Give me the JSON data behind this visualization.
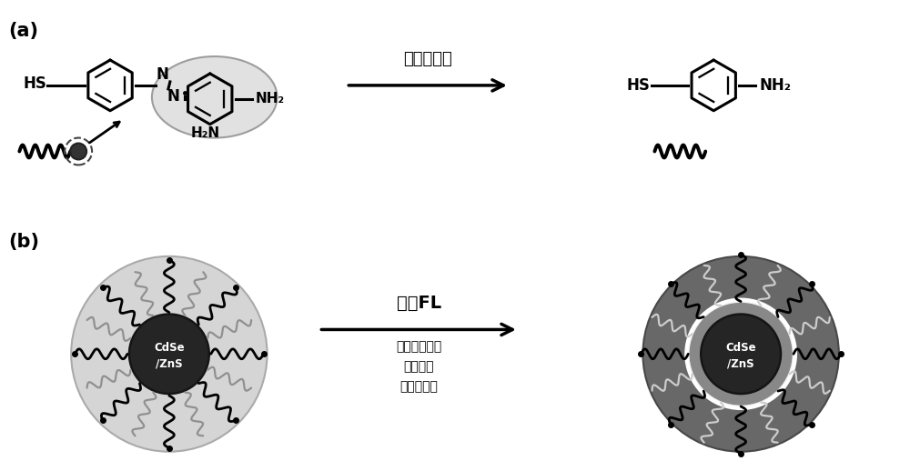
{
  "label_a": "(a)",
  "label_b": "(b)",
  "arrow_text_a": "移除偶氮苯",
  "arrow_text_b": "开启FL",
  "arrow_text_b2": "连二亚硫酸盐\n次氯酸盐\n偶氮还原酶",
  "bg_color": "#ffffff",
  "dark_color": "#000000",
  "gray_light": "#d0d0d0",
  "gray_mid": "#888888",
  "gray_dark": "#505050",
  "gray_outer_right": "#707070"
}
